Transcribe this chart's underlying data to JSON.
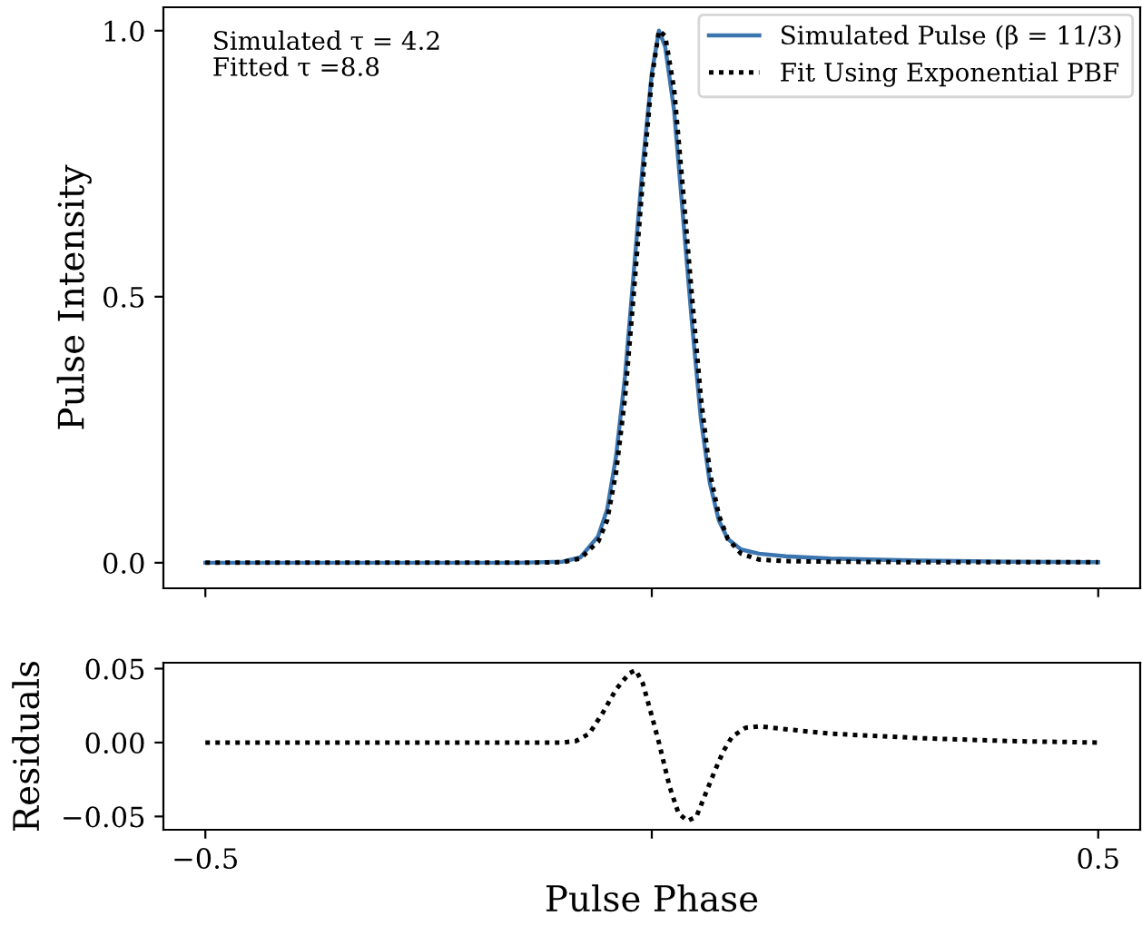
{
  "chart_data": [
    {
      "type": "line",
      "ylabel": "Pulse Intensity",
      "xlim": [
        -0.547,
        0.547
      ],
      "ylim": [
        -0.048,
        1.044
      ],
      "xticks": [
        {
          "value": -0.5,
          "label": null
        },
        {
          "value": 0,
          "label": null
        },
        {
          "value": 0.5,
          "label": null
        }
      ],
      "yticks": [
        {
          "value": 0,
          "label": "0.0"
        },
        {
          "value": 0.5,
          "label": "0.5"
        },
        {
          "value": 1,
          "label": "1.0"
        }
      ],
      "tick_labels": "y",
      "grid": false,
      "legend": "top right",
      "annotations": [
        "Simulated τ = 4.2",
        "Fitted τ =8.8"
      ],
      "x": [
        -0.5,
        -0.15,
        -0.1,
        -0.08,
        -0.06,
        -0.05,
        -0.04,
        -0.03,
        -0.02,
        -0.01,
        0,
        0.008,
        0.015,
        0.025,
        0.035,
        0.045,
        0.055,
        0.065,
        0.075,
        0.085,
        0.1,
        0.12,
        0.15,
        0.2,
        0.3,
        0.4,
        0.5
      ],
      "series": [
        {
          "name": "Simulated Pulse (β = 11/3)",
          "color": "#3b75af",
          "line_style": "solid",
          "values": [
            0,
            0,
            0.002,
            0.01,
            0.05,
            0.1,
            0.2,
            0.35,
            0.55,
            0.75,
            0.92,
            1.0,
            0.97,
            0.85,
            0.65,
            0.45,
            0.27,
            0.15,
            0.08,
            0.045,
            0.025,
            0.017,
            0.012,
            0.008,
            0.004,
            0.002,
            0.001
          ]
        },
        {
          "name": "Fit Using Exponential PBF",
          "color": "#000000",
          "line_style": "dotted",
          "values": [
            0,
            0,
            0.001,
            0.008,
            0.04,
            0.08,
            0.17,
            0.31,
            0.51,
            0.72,
            0.91,
            1.0,
            0.99,
            0.89,
            0.7,
            0.5,
            0.31,
            0.17,
            0.09,
            0.045,
            0.017,
            0.006,
            0.003,
            0.002,
            0.001,
            0.001,
            0.001
          ]
        }
      ]
    },
    {
      "type": "line",
      "xlabel": "Pulse Phase",
      "ylabel": "Residuals",
      "xlim": [
        -0.547,
        0.547
      ],
      "ylim": [
        -0.059,
        0.054
      ],
      "xticks": [
        {
          "value": -0.5,
          "label": "−0.5"
        },
        0.5,
        {
          "value": 0,
          "label": null
        }
      ],
      "yticks": [
        {
          "value": -0.05,
          "label": "−0.05"
        },
        {
          "value": 0,
          "label": "0.00"
        },
        {
          "value": 0.05,
          "label": "0.05"
        }
      ],
      "grid": false,
      "x": [
        -0.5,
        -0.1,
        -0.085,
        -0.07,
        -0.055,
        -0.04,
        -0.025,
        -0.018,
        -0.01,
        0,
        0.008,
        0.02,
        0.03,
        0.04,
        0.05,
        0.06,
        0.07,
        0.08,
        0.09,
        0.105,
        0.12,
        0.15,
        0.2,
        0.3,
        0.4,
        0.5
      ],
      "series": [
        {
          "color": "#000000",
          "line_style": "dotted",
          "values": [
            0,
            0,
            0.001,
            0.006,
            0.02,
            0.036,
            0.047,
            0.049,
            0.04,
            0.018,
            0,
            -0.03,
            -0.048,
            -0.053,
            -0.05,
            -0.035,
            -0.02,
            -0.006,
            0.004,
            0.01,
            0.011,
            0.009,
            0.006,
            0.003,
            0.001,
            0
          ]
        }
      ]
    }
  ]
}
